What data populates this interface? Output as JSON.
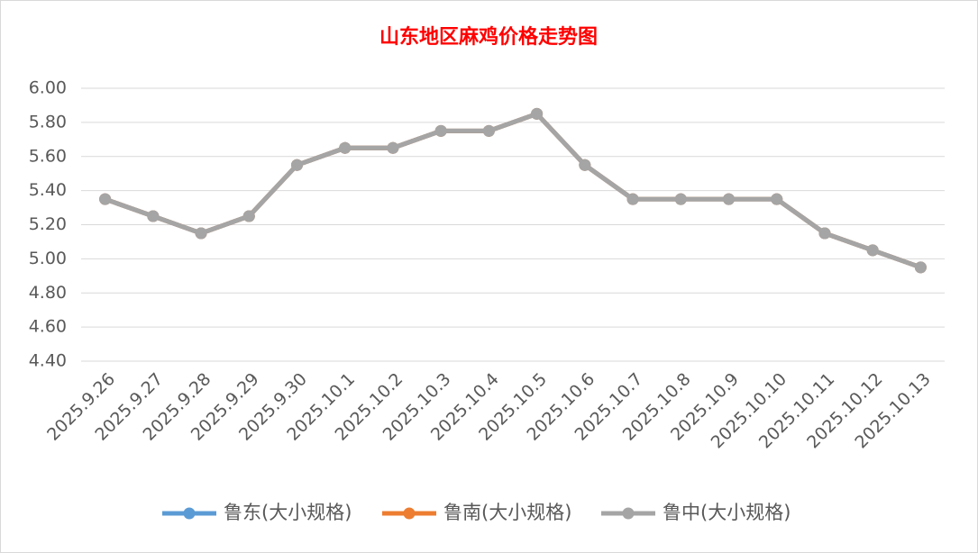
{
  "chart_data": {
    "type": "line",
    "title": "山东地区麻鸡价格走势图",
    "categories": [
      "2025.9.26",
      "2025.9.27",
      "2025.9.28",
      "2025.9.29",
      "2025.9.30",
      "2025.10.1",
      "2025.10.2",
      "2025.10.3",
      "2025.10.4",
      "2025.10.5",
      "2025.10.6",
      "2025.10.7",
      "2025.10.8",
      "2025.10.9",
      "2025.10.10",
      "2025.10.11",
      "2025.10.12",
      "2025.10.13"
    ],
    "series": [
      {
        "name": "鲁东(大小规格)",
        "color": "#5b9bd5",
        "values": [
          5.35,
          5.25,
          5.15,
          5.25,
          5.55,
          5.65,
          5.65,
          5.75,
          5.75,
          5.85,
          5.55,
          5.35,
          5.35,
          5.35,
          5.35,
          5.15,
          5.05,
          4.95
        ]
      },
      {
        "name": "鲁南(大小规格)",
        "color": "#ed7d31",
        "values": [
          5.35,
          5.25,
          5.15,
          5.25,
          5.55,
          5.65,
          5.65,
          5.75,
          5.75,
          5.85,
          5.55,
          5.35,
          5.35,
          5.35,
          5.35,
          5.15,
          5.05,
          4.95
        ]
      },
      {
        "name": "鲁中(大小规格)",
        "color": "#a5a5a5",
        "values": [
          5.35,
          5.25,
          5.15,
          5.25,
          5.55,
          5.65,
          5.65,
          5.75,
          5.75,
          5.85,
          5.55,
          5.35,
          5.35,
          5.35,
          5.35,
          5.15,
          5.05,
          4.95
        ]
      }
    ],
    "ylim": [
      4.4,
      6.0
    ],
    "yticks": [
      {
        "value": 4.4,
        "label": "4.40"
      },
      {
        "value": 4.6,
        "label": "4.60"
      },
      {
        "value": 4.8,
        "label": "4.80"
      },
      {
        "value": 5.0,
        "label": "5.00"
      },
      {
        "value": 5.2,
        "label": "5.20"
      },
      {
        "value": 5.4,
        "label": "5.40"
      },
      {
        "value": 5.6,
        "label": "5.60"
      },
      {
        "value": 5.8,
        "label": "5.80"
      },
      {
        "value": 6.0,
        "label": "6.00"
      }
    ],
    "grid": true,
    "legend": "bottom"
  }
}
